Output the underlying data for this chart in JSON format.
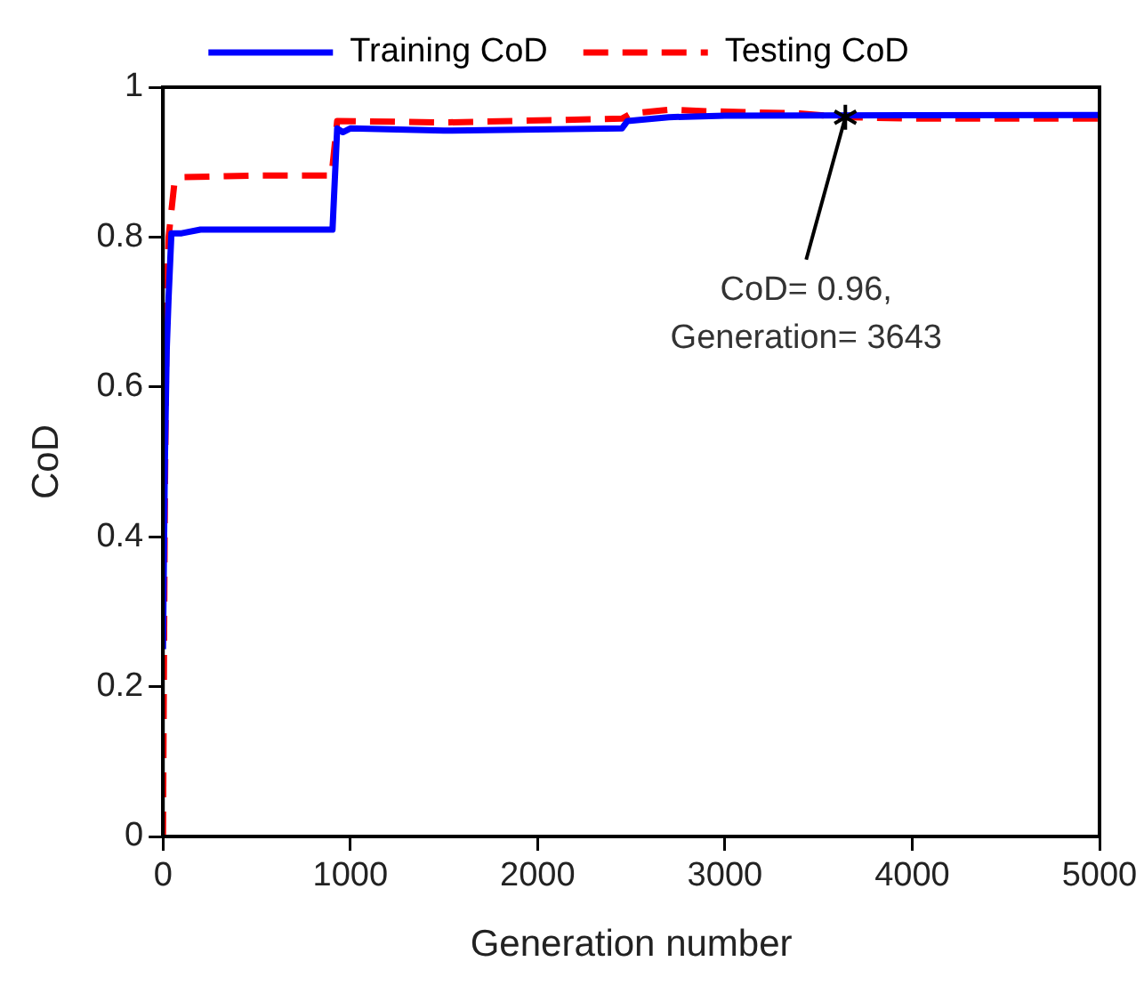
{
  "chart_data": {
    "type": "line",
    "xlabel": "Generation number",
    "ylabel": "CoD",
    "series": [
      {
        "name": "Training CoD",
        "color": "#0000ff",
        "line_style": "solid",
        "x": [
          0,
          10,
          20,
          30,
          45,
          100,
          200,
          600,
          905,
          930,
          960,
          1000,
          1500,
          2450,
          2480,
          2700,
          3000,
          5000
        ],
        "values": [
          0.25,
          0.5,
          0.65,
          0.72,
          0.805,
          0.805,
          0.81,
          0.81,
          0.81,
          0.945,
          0.94,
          0.945,
          0.942,
          0.945,
          0.955,
          0.96,
          0.962,
          0.963
        ]
      },
      {
        "name": "Testing CoD",
        "color": "#ff0000",
        "line_style": "dashed",
        "x": [
          0,
          10,
          20,
          30,
          60,
          100,
          500,
          900,
          930,
          1500,
          2450,
          2500,
          2700,
          2900,
          3400,
          3643,
          4000,
          5000
        ],
        "values": [
          0,
          0.45,
          0.72,
          0.8,
          0.87,
          0.88,
          0.882,
          0.882,
          0.955,
          0.953,
          0.958,
          0.965,
          0.97,
          0.968,
          0.965,
          0.96,
          0.958,
          0.958
        ]
      }
    ],
    "xlim": [
      0,
      5000
    ],
    "xticks": [
      0,
      1000,
      2000,
      3000,
      4000,
      5000
    ],
    "ylim": [
      0,
      1
    ],
    "yticks": [
      0,
      0.2,
      0.4,
      0.6,
      0.8,
      1
    ],
    "grid": false,
    "legend": "top",
    "marker": "none",
    "annotations": [
      {
        "text": "CoD= 0.96,\nGeneration= 3643",
        "x": 3643,
        "y": 0.96
      }
    ]
  }
}
